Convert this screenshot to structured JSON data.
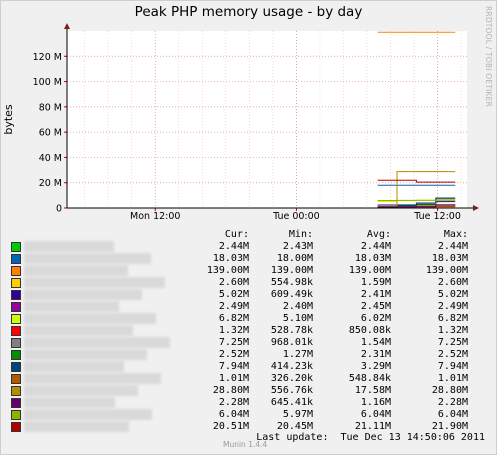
{
  "chart_data": {
    "type": "line",
    "title": "Peak PHP memory usage - by day",
    "watermark": "RRDTOOL / TOBI OETIKER",
    "ylabel": "bytes",
    "ylim": [
      0,
      140000000
    ],
    "y_ticks": [
      {
        "value": 0,
        "label": "0"
      },
      {
        "value": 20000000,
        "label": "20 M"
      },
      {
        "value": 40000000,
        "label": "40 M"
      },
      {
        "value": 60000000,
        "label": "60 M"
      },
      {
        "value": 80000000,
        "label": "80 M"
      },
      {
        "value": 100000000,
        "label": "100 M"
      },
      {
        "value": 120000000,
        "label": "120 M"
      }
    ],
    "x_ticks": [
      {
        "label": "Mon 12:00",
        "t": 12
      },
      {
        "label": "Tue 00:00",
        "t": 24
      },
      {
        "label": "Tue 12:00",
        "t": 36
      }
    ],
    "x_range": [
      4.5,
      38.5
    ],
    "data_start": 30.9,
    "grid": true,
    "series": [
      {
        "color": "#00cc00",
        "cur": "2.44M",
        "min": "2.43M",
        "avg": "2.44M",
        "max": "2.44M",
        "values": [
          2.44,
          2.44,
          2.44,
          2.44
        ]
      },
      {
        "color": "#0066b3",
        "cur": "18.03M",
        "min": "18.00M",
        "avg": "18.03M",
        "max": "18.03M",
        "values": [
          18.0,
          18.03,
          18.03,
          18.03
        ]
      },
      {
        "color": "#ff8000",
        "cur": "139.00M",
        "min": "139.00M",
        "avg": "139.00M",
        "max": "139.00M",
        "values": [
          139.0,
          139.0,
          139.0,
          139.0
        ]
      },
      {
        "color": "#ffcc00",
        "cur": "2.60M",
        "min": "554.98k",
        "avg": "1.59M",
        "max": "2.60M",
        "values": [
          0.55,
          1.2,
          2.0,
          2.6
        ]
      },
      {
        "color": "#330099",
        "cur": "5.02M",
        "min": "609.49k",
        "avg": "2.41M",
        "max": "5.02M",
        "values": [
          0.61,
          1.5,
          3.0,
          5.02
        ]
      },
      {
        "color": "#990099",
        "cur": "2.49M",
        "min": "2.40M",
        "avg": "2.45M",
        "max": "2.49M",
        "values": [
          2.4,
          2.45,
          2.47,
          2.49
        ]
      },
      {
        "color": "#ccff00",
        "cur": "6.82M",
        "min": "5.10M",
        "avg": "6.02M",
        "max": "6.82M",
        "values": [
          5.1,
          5.8,
          6.3,
          6.82
        ]
      },
      {
        "color": "#ff0000",
        "cur": "1.32M",
        "min": "528.78k",
        "avg": "850.08k",
        "max": "1.32M",
        "values": [
          0.53,
          0.7,
          0.9,
          1.32
        ]
      },
      {
        "color": "#808080",
        "cur": "7.25M",
        "min": "968.01k",
        "avg": "1.54M",
        "max": "7.25M",
        "values": [
          0.97,
          1.0,
          1.2,
          7.25
        ]
      },
      {
        "color": "#008f00",
        "cur": "2.52M",
        "min": "1.27M",
        "avg": "2.31M",
        "max": "2.52M",
        "values": [
          1.27,
          2.4,
          2.5,
          2.52
        ]
      },
      {
        "color": "#00487d",
        "cur": "7.94M",
        "min": "414.23k",
        "avg": "3.29M",
        "max": "7.94M",
        "values": [
          0.41,
          2.0,
          4.0,
          7.94
        ]
      },
      {
        "color": "#b35a00",
        "cur": "1.01M",
        "min": "326.20k",
        "avg": "548.84k",
        "max": "1.01M",
        "values": [
          0.33,
          0.4,
          0.5,
          1.01
        ]
      },
      {
        "color": "#b38f00",
        "cur": "28.80M",
        "min": "556.76k",
        "avg": "17.58M",
        "max": "28.80M",
        "values": [
          0.56,
          28.8,
          28.8,
          28.8
        ]
      },
      {
        "color": "#6b006b",
        "cur": "2.28M",
        "min": "645.41k",
        "avg": "1.16M",
        "max": "2.28M",
        "values": [
          0.65,
          0.9,
          1.1,
          2.28
        ]
      },
      {
        "color": "#8fb300",
        "cur": "6.04M",
        "min": "5.97M",
        "avg": "6.04M",
        "max": "6.04M",
        "values": [
          5.97,
          6.04,
          6.04,
          6.04
        ]
      },
      {
        "color": "#b30000",
        "cur": "20.51M",
        "min": "20.45M",
        "avg": "21.11M",
        "max": "21.90M",
        "values": [
          21.9,
          21.9,
          20.45,
          20.51
        ]
      }
    ]
  },
  "legend_header": {
    "cur": "Cur:",
    "min": "Min:",
    "avg": "Avg:",
    "max": "Max:"
  },
  "footer": {
    "last_update": "Last update:  Tue Dec 13 14:50:06 2011",
    "munin_version": "Munin 1.4.4"
  }
}
